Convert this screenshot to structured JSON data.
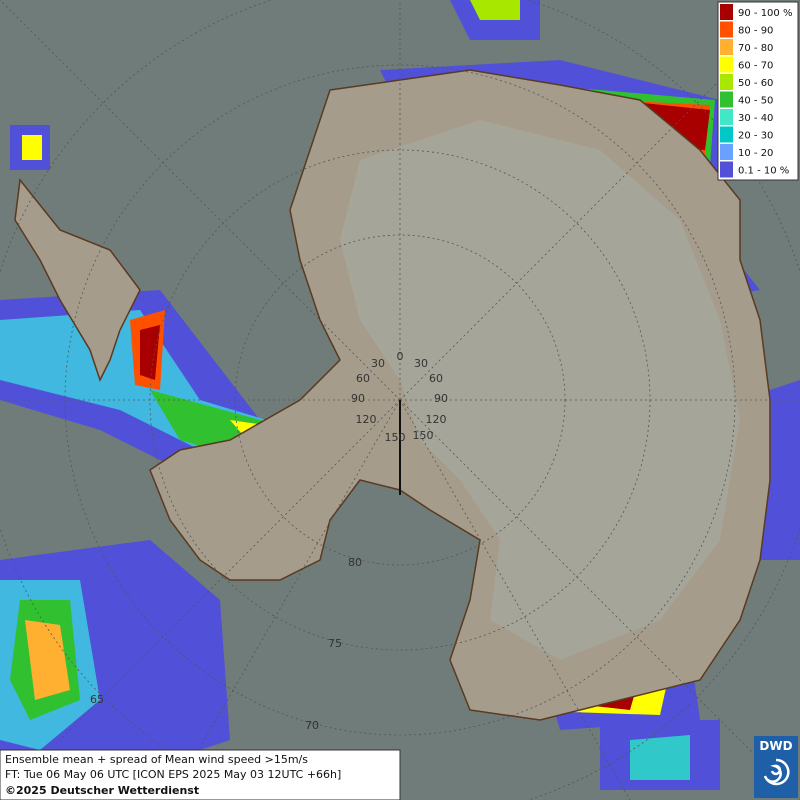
{
  "legend": {
    "items": [
      {
        "label": "90 - 100 %",
        "color": "#a80000"
      },
      {
        "label": "80 - 90",
        "color": "#ff5000"
      },
      {
        "label": "70 - 80",
        "color": "#ffb030"
      },
      {
        "label": "60 - 70",
        "color": "#ffff00"
      },
      {
        "label": "50 - 60",
        "color": "#a8e800"
      },
      {
        "label": "40 - 50",
        "color": "#30c030"
      },
      {
        "label": "30 - 40",
        "color": "#40e8c8"
      },
      {
        "label": "20 - 30",
        "color": "#00c8c8"
      },
      {
        "label": "10 - 20",
        "color": "#6aa0ff"
      },
      {
        "label": "0.1 - 10 %",
        "color": "#5050d8"
      }
    ]
  },
  "grid_labels": [
    "0",
    "30",
    "30",
    "60",
    "60",
    "90",
    "90",
    "120",
    "120",
    "150",
    "150",
    "80",
    "75",
    "70",
    "65"
  ],
  "info": {
    "line1": "Ensemble mean + spread of Mean wind speed >15m/s",
    "line2": "FT: Tue 06 May 06 UTC [ICON EPS 2025 May 03 12UTC +66h]",
    "copyright": "©2025 Deutscher Wetterdienst"
  },
  "logo": "DWD"
}
